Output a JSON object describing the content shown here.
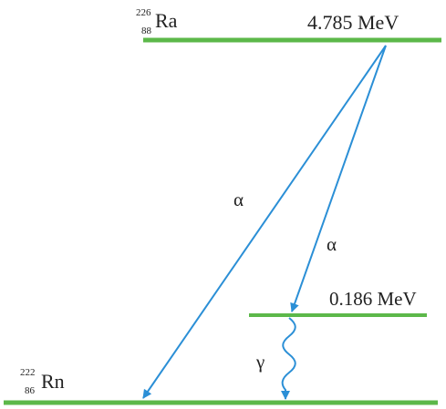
{
  "parent_nucleus": {
    "mass_number": "226",
    "atomic_number": "88",
    "symbol": "Ra",
    "energy_label": "4.785 MeV"
  },
  "excited_level": {
    "energy_label": "0.186 MeV"
  },
  "daughter_nucleus": {
    "mass_number": "222",
    "atomic_number": "86",
    "symbol": "Rn"
  },
  "transitions": {
    "alpha_to_ground": "α",
    "alpha_to_excited": "α",
    "gamma": "γ"
  },
  "colors": {
    "level_line": "#5cb84a",
    "arrow": "#2b8fd6",
    "text": "#222222"
  }
}
